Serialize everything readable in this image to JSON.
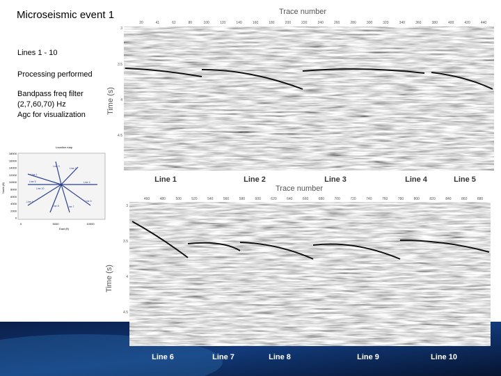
{
  "slide": {
    "title": "Microseismic event 1",
    "notes": [
      "Lines 1 - 10",
      "Processing performed",
      "Bandpass freq filter",
      "(2,7,60,70) Hz",
      "Agc for visualization"
    ],
    "location_map": {
      "title": "Location map",
      "ylabel": "North (ft)",
      "xlabel": "East (ft)",
      "yticks": [
        "18000",
        "16000",
        "14000",
        "12000",
        "10000",
        "8000",
        "6000",
        "4000",
        "2000",
        "0"
      ],
      "xticks": [
        "0",
        "5000",
        "10000"
      ],
      "line_labels": [
        "Line 1",
        "Line 2",
        "Line 3",
        "Line 4",
        "Line 5",
        "Line 6",
        "Line 7",
        "Line 8",
        "Line 9",
        "Line 10"
      ]
    },
    "panels": [
      {
        "xlabel": "Trace number",
        "ylabel": "Time (s)",
        "xticks": [
          "20",
          "41",
          "62",
          "80",
          "100",
          "120",
          "140",
          "160",
          "180",
          "200",
          "220",
          "240",
          "260",
          "280",
          "300",
          "320",
          "340",
          "360",
          "380",
          "400",
          "420",
          "440"
        ],
        "yticks": [
          "3",
          "3.5",
          "4",
          "4.5"
        ],
        "line_labels": [
          "Line 1",
          "Line 2",
          "Line 3",
          "Line 4",
          "Line 5"
        ]
      },
      {
        "xlabel": "Trace number",
        "ylabel": "Time (s)",
        "xticks": [
          "460",
          "480",
          "500",
          "520",
          "540",
          "560",
          "580",
          "600",
          "620",
          "640",
          "660",
          "680",
          "700",
          "720",
          "740",
          "760",
          "780",
          "800",
          "820",
          "840",
          "860",
          "880"
        ],
        "yticks": [
          "3",
          "3.5",
          "4",
          "4.5"
        ],
        "line_labels": [
          "Line 6",
          "Line 7",
          "Line 8",
          "Line 9",
          "Line 10"
        ]
      }
    ]
  }
}
